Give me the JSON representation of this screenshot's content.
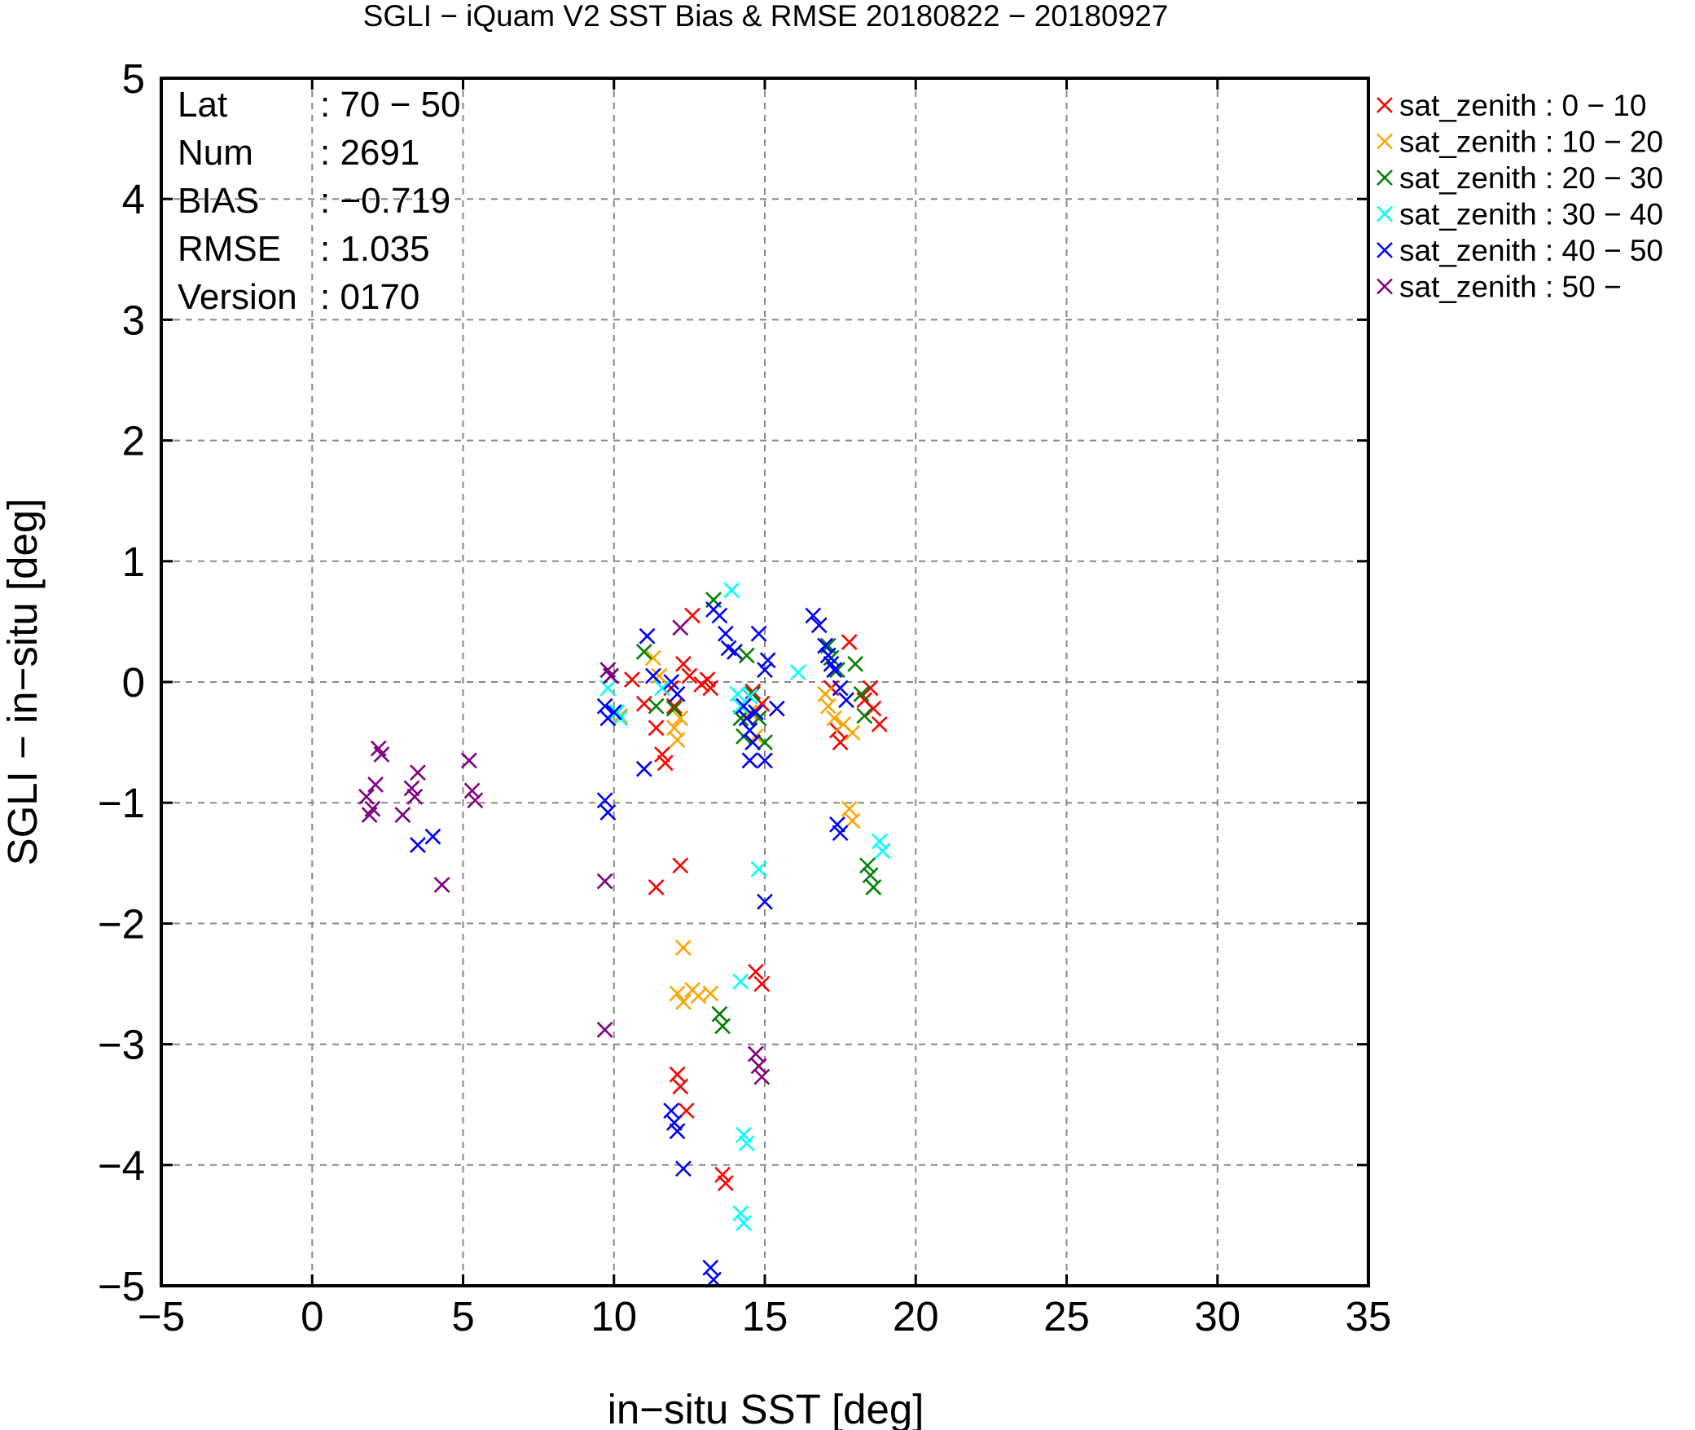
{
  "chart_data": {
    "type": "scatter",
    "title": "SGLI − iQuam V2 SST Bias & RMSE 20180822 − 20180927",
    "xlabel": "in−situ SST [deg]",
    "ylabel": "SGLI − in−situ [deg]",
    "xlim": [
      -5,
      35
    ],
    "ylim": [
      -5,
      5
    ],
    "xticks": [
      -5,
      0,
      5,
      10,
      15,
      20,
      25,
      30,
      35
    ],
    "yticks": [
      -5,
      -4,
      -3,
      -2,
      -1,
      0,
      1,
      2,
      3,
      4,
      5
    ],
    "xtick_labels": [
      "−5",
      "0",
      "5",
      "10",
      "15",
      "20",
      "25",
      "30",
      "35"
    ],
    "ytick_labels": [
      "−5",
      "−4",
      "−3",
      "−2",
      "−1",
      "0",
      "1",
      "2",
      "3",
      "4",
      "5"
    ],
    "grid": true,
    "legend_position": "outside-right-top",
    "stats": [
      {
        "label": "Lat",
        "value": ": 70 − 50"
      },
      {
        "label": "Num",
        "value": ": 2691"
      },
      {
        "label": "BIAS",
        "value": ": −0.719"
      },
      {
        "label": "RMSE",
        "value": ": 1.035"
      },
      {
        "label": "Version",
        "value": ": 0170"
      }
    ],
    "series": [
      {
        "name": "sat_zenith :  0 − 10",
        "color": "#ff0000",
        "points": [
          [
            10.6,
            0.02
          ],
          [
            11.0,
            -0.18
          ],
          [
            11.4,
            -0.38
          ],
          [
            11.6,
            -0.6
          ],
          [
            11.7,
            -0.67
          ],
          [
            11.9,
            -0.05
          ],
          [
            12.0,
            -0.2
          ],
          [
            12.3,
            0.15
          ],
          [
            12.5,
            0.05
          ],
          [
            12.6,
            0.55
          ],
          [
            12.9,
            -0.02
          ],
          [
            13.1,
            0.02
          ],
          [
            13.2,
            -0.05
          ],
          [
            14.6,
            -0.08
          ],
          [
            14.9,
            -0.18
          ],
          [
            17.2,
            -0.05
          ],
          [
            17.4,
            -0.4
          ],
          [
            17.5,
            -0.5
          ],
          [
            17.8,
            0.33
          ],
          [
            18.3,
            -0.15
          ],
          [
            18.5,
            -0.05
          ],
          [
            18.6,
            -0.22
          ],
          [
            18.8,
            -0.35
          ],
          [
            11.4,
            -1.7
          ],
          [
            12.2,
            -1.52
          ],
          [
            14.7,
            -2.4
          ],
          [
            14.9,
            -2.5
          ],
          [
            12.1,
            -3.25
          ],
          [
            12.2,
            -3.35
          ],
          [
            12.4,
            -3.55
          ],
          [
            13.6,
            -4.08
          ],
          [
            13.7,
            -4.15
          ]
        ]
      },
      {
        "name": "sat_zenith : 10 − 20",
        "color": "#ffa500",
        "points": [
          [
            10.2,
            -0.28
          ],
          [
            11.3,
            0.2
          ],
          [
            11.5,
            0.05
          ],
          [
            12.0,
            -0.38
          ],
          [
            12.1,
            -0.48
          ],
          [
            12.2,
            -0.3
          ],
          [
            14.5,
            -0.25
          ],
          [
            14.7,
            -0.45
          ],
          [
            17.0,
            -0.1
          ],
          [
            17.1,
            -0.2
          ],
          [
            17.3,
            -0.3
          ],
          [
            17.6,
            -0.35
          ],
          [
            17.9,
            -0.42
          ],
          [
            17.8,
            -1.05
          ],
          [
            17.9,
            -1.15
          ],
          [
            12.3,
            -2.2
          ],
          [
            12.1,
            -2.58
          ],
          [
            12.3,
            -2.65
          ],
          [
            12.6,
            -2.55
          ],
          [
            12.8,
            -2.6
          ],
          [
            13.2,
            -2.58
          ]
        ]
      },
      {
        "name": "sat_zenith : 20 − 30",
        "color": "#008000",
        "points": [
          [
            11.0,
            0.25
          ],
          [
            11.4,
            -0.2
          ],
          [
            12.0,
            -0.22
          ],
          [
            13.3,
            0.68
          ],
          [
            14.2,
            -0.3
          ],
          [
            14.3,
            -0.45
          ],
          [
            14.4,
            0.22
          ],
          [
            14.6,
            -0.1
          ],
          [
            14.8,
            -0.3
          ],
          [
            15.0,
            -0.5
          ],
          [
            17.1,
            0.3
          ],
          [
            17.2,
            0.2
          ],
          [
            17.4,
            0.1
          ],
          [
            18.0,
            0.15
          ],
          [
            18.2,
            -0.1
          ],
          [
            18.3,
            -0.28
          ],
          [
            18.4,
            -1.52
          ],
          [
            18.5,
            -1.6
          ],
          [
            18.6,
            -1.7
          ],
          [
            13.5,
            -2.75
          ],
          [
            13.6,
            -2.85
          ]
        ]
      },
      {
        "name": "sat_zenith : 30 − 40",
        "color": "#00ffff",
        "points": [
          [
            9.8,
            -0.05
          ],
          [
            10.1,
            -0.25
          ],
          [
            10.2,
            -0.3
          ],
          [
            11.6,
            -0.05
          ],
          [
            13.9,
            0.76
          ],
          [
            14.1,
            -0.1
          ],
          [
            14.2,
            -0.2
          ],
          [
            14.5,
            -0.12
          ],
          [
            16.1,
            0.08
          ],
          [
            18.8,
            -1.32
          ],
          [
            18.9,
            -1.4
          ],
          [
            14.8,
            -1.55
          ],
          [
            14.2,
            -2.48
          ],
          [
            14.3,
            -3.75
          ],
          [
            14.4,
            -3.82
          ],
          [
            14.2,
            -4.4
          ],
          [
            14.3,
            -4.48
          ]
        ]
      },
      {
        "name": "sat_zenith : 40 − 50",
        "color": "#0000ff",
        "points": [
          [
            9.7,
            -0.2
          ],
          [
            9.8,
            -0.3
          ],
          [
            9.9,
            0.05
          ],
          [
            10.0,
            -0.25
          ],
          [
            11.1,
            0.38
          ],
          [
            11.3,
            0.05
          ],
          [
            11.9,
            0.0
          ],
          [
            12.1,
            -0.1
          ],
          [
            13.3,
            0.6
          ],
          [
            13.5,
            0.55
          ],
          [
            13.7,
            0.4
          ],
          [
            13.8,
            0.28
          ],
          [
            14.0,
            0.25
          ],
          [
            14.3,
            -0.2
          ],
          [
            14.4,
            -0.3
          ],
          [
            14.5,
            -0.4
          ],
          [
            14.6,
            -0.5
          ],
          [
            14.7,
            -0.25
          ],
          [
            14.8,
            0.4
          ],
          [
            15.0,
            0.1
          ],
          [
            15.1,
            0.18
          ],
          [
            15.4,
            -0.22
          ],
          [
            16.6,
            0.55
          ],
          [
            16.8,
            0.47
          ],
          [
            17.0,
            0.3
          ],
          [
            17.1,
            0.22
          ],
          [
            17.2,
            0.15
          ],
          [
            17.3,
            0.1
          ],
          [
            17.5,
            -0.05
          ],
          [
            17.7,
            -0.15
          ],
          [
            11.0,
            -0.72
          ],
          [
            14.5,
            -0.65
          ],
          [
            15.0,
            -0.65
          ],
          [
            9.7,
            -0.98
          ],
          [
            9.8,
            -1.08
          ],
          [
            17.4,
            -1.18
          ],
          [
            17.5,
            -1.25
          ],
          [
            15.0,
            -1.82
          ],
          [
            4.0,
            -1.28
          ],
          [
            3.5,
            -1.35
          ],
          [
            11.9,
            -3.55
          ],
          [
            12.0,
            -3.65
          ],
          [
            12.1,
            -3.72
          ],
          [
            12.3,
            -4.03
          ],
          [
            13.2,
            -4.85
          ],
          [
            13.3,
            -4.95
          ]
        ]
      },
      {
        "name": "sat_zenith : 50 −",
        "color": "#800080",
        "points": [
          [
            1.8,
            -0.95
          ],
          [
            2.0,
            -1.05
          ],
          [
            1.9,
            -1.1
          ],
          [
            2.1,
            -0.85
          ],
          [
            2.2,
            -0.55
          ],
          [
            2.3,
            -0.6
          ],
          [
            3.0,
            -1.1
          ],
          [
            3.3,
            -0.88
          ],
          [
            3.4,
            -0.95
          ],
          [
            3.5,
            -0.75
          ],
          [
            5.2,
            -0.65
          ],
          [
            5.3,
            -0.9
          ],
          [
            5.4,
            -0.98
          ],
          [
            4.3,
            -1.68
          ],
          [
            9.7,
            -1.65
          ],
          [
            9.7,
            -2.88
          ],
          [
            9.8,
            0.1
          ],
          [
            9.9,
            0.05
          ],
          [
            12.2,
            0.45
          ],
          [
            14.7,
            -3.08
          ],
          [
            14.8,
            -3.18
          ],
          [
            14.9,
            -3.27
          ]
        ]
      }
    ]
  }
}
